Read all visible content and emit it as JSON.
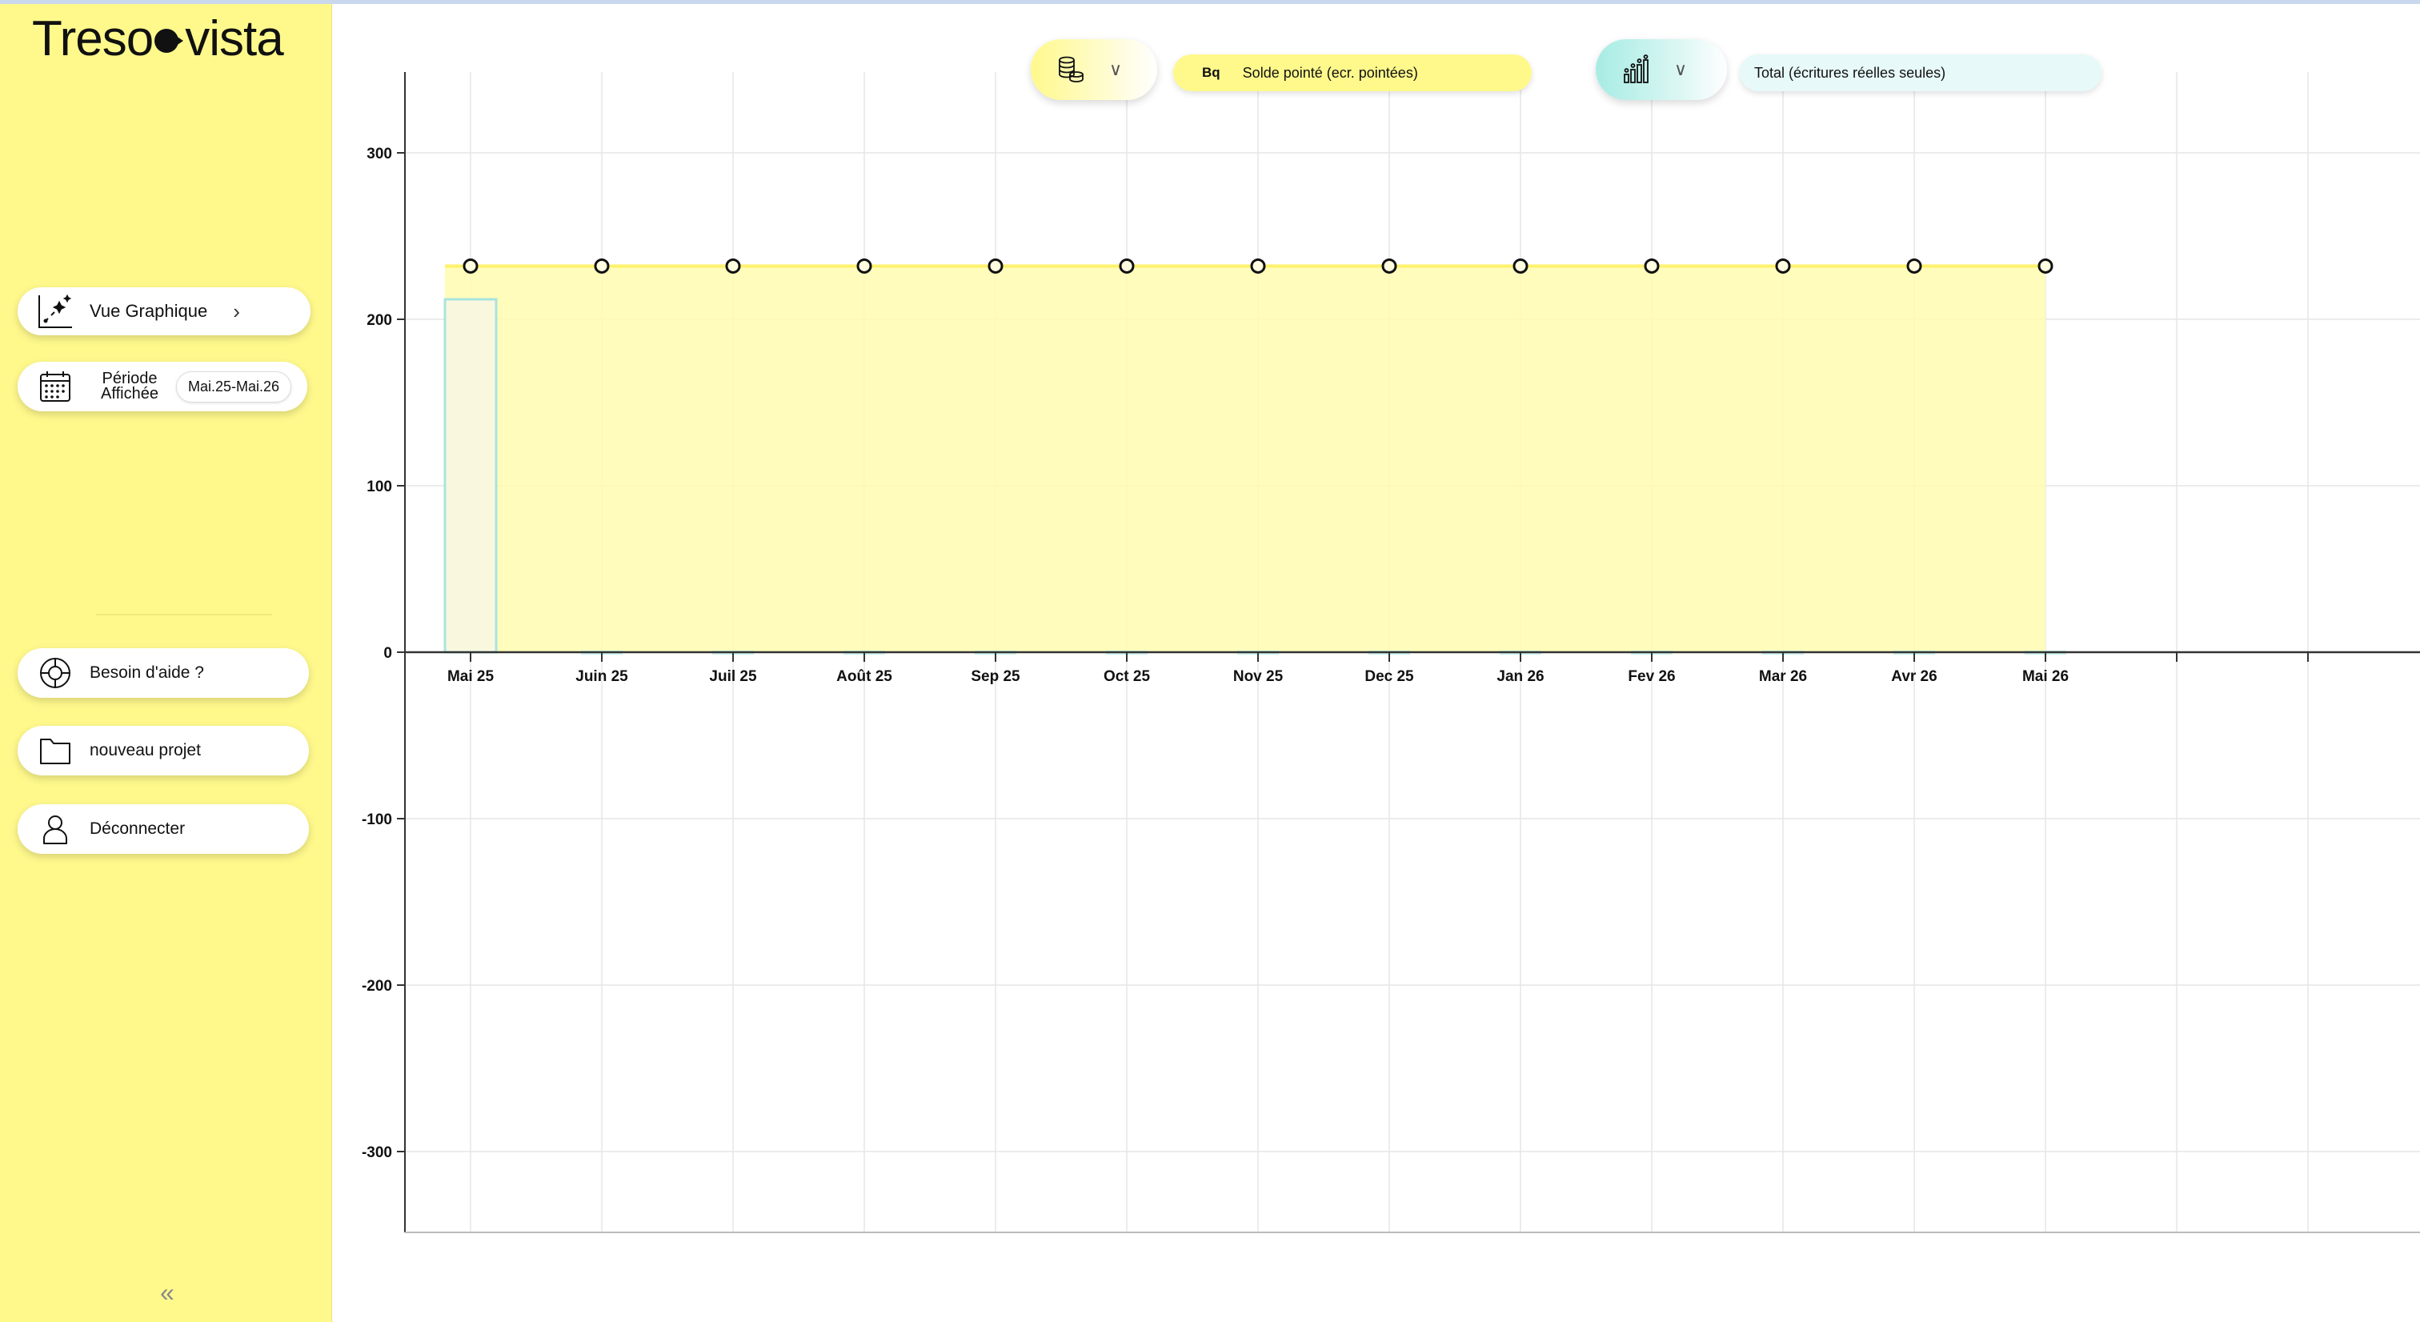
{
  "app": {
    "logo_left": "Treso",
    "logo_right": "vista"
  },
  "sidebar": {
    "vue_graphique": "Vue Graphique",
    "periode_label": "Période Affichée",
    "periode_value": "Mai.25-Mai.26",
    "items": [
      {
        "label": "Besoin d'aide ?",
        "icon": "help-target-icon"
      },
      {
        "label": "nouveau projet",
        "icon": "folder-icon"
      },
      {
        "label": "Déconnecter",
        "icon": "user-icon"
      }
    ],
    "collapse_label": "«"
  },
  "toolbar": {
    "account_selector_icon": "coins-icon",
    "account_prefix": "Bq",
    "account_value": "Solde pointé (ecr. pointées)",
    "mode_selector_icon": "chart-people-icon",
    "mode_value": "Total (écritures réelles seules)"
  },
  "colors": {
    "sidebar_bg": "#fff98c",
    "area_fill": "#fffcb0",
    "area_line": "#fff26a",
    "bar_outline": "#a9e4de",
    "grid": "#e6e6e6"
  },
  "chart_data": {
    "type": "line",
    "categories": [
      "Mai 25",
      "Juin 25",
      "Juil 25",
      "Août 25",
      "Sep 25",
      "Oct 25",
      "Nov 25",
      "Dec 25",
      "Jan 26",
      "Fev 26",
      "Mar 26",
      "Avr 26",
      "Mai 26"
    ],
    "series": [
      {
        "values": [
          232,
          232,
          232,
          232,
          232,
          232,
          232,
          232,
          232,
          232,
          232,
          232,
          232
        ]
      }
    ],
    "bars": [
      {
        "category": "Mai 25",
        "value": 212
      }
    ],
    "yticks": [
      300,
      200,
      100,
      0,
      -100,
      -200,
      -300
    ],
    "ylim": [
      -347,
      347
    ],
    "extra_x_slots": 2,
    "grid": true,
    "xlabel": "",
    "ylabel": ""
  }
}
